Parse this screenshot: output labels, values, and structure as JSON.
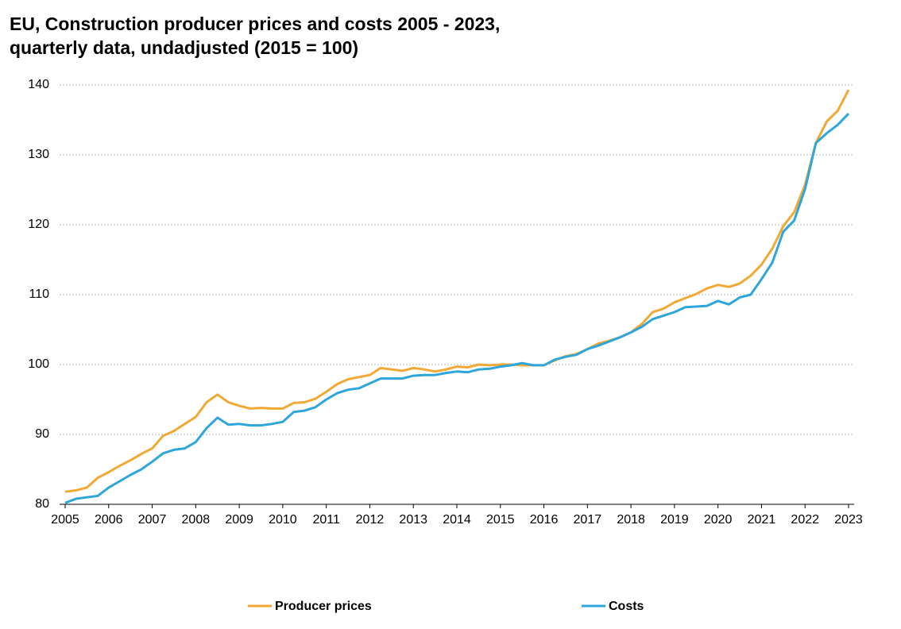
{
  "chart_data": {
    "type": "line",
    "title": [
      "EU, Construction producer prices and costs 2005 - 2023,",
      "quarterly data, undadjusted (2015 = 100)"
    ],
    "categories": [
      "2005",
      null,
      null,
      null,
      "2006",
      null,
      null,
      null,
      "2007",
      null,
      null,
      null,
      "2008",
      null,
      null,
      null,
      "2009",
      null,
      null,
      null,
      "2010",
      null,
      null,
      null,
      "2011",
      null,
      null,
      null,
      "2012",
      null,
      null,
      null,
      "2013",
      null,
      null,
      null,
      "2014",
      null,
      null,
      null,
      "2015",
      null,
      null,
      null,
      "2016",
      null,
      null,
      null,
      "2017",
      null,
      null,
      null,
      "2018",
      null,
      null,
      null,
      "2019",
      null,
      null,
      null,
      "2020",
      null,
      null,
      null,
      "2021",
      null,
      null,
      null,
      "2022",
      null,
      null,
      null,
      "2023"
    ],
    "series": [
      {
        "name": "Producer prices",
        "color": "#f0a934",
        "values": [
          81.8,
          82.0,
          82.4,
          83.8,
          84.6,
          85.5,
          86.3,
          87.2,
          88.0,
          89.8,
          90.5,
          91.5,
          92.5,
          94.6,
          95.7,
          94.6,
          94.1,
          93.7,
          93.8,
          93.7,
          93.7,
          94.5,
          94.6,
          95.1,
          96.1,
          97.2,
          97.9,
          98.2,
          98.5,
          99.5,
          99.3,
          99.1,
          99.5,
          99.3,
          99.0,
          99.3,
          99.7,
          99.6,
          100.0,
          99.9,
          100.0,
          100.0,
          99.9,
          99.9,
          99.9,
          100.6,
          101.2,
          101.5,
          102.2,
          103.0,
          103.4,
          103.9,
          104.6,
          105.8,
          107.5,
          108.0,
          108.9,
          109.5,
          110.1,
          110.9,
          111.4,
          111.1,
          111.6,
          112.7,
          114.3,
          116.6,
          119.8,
          121.8,
          125.7,
          131.7,
          134.8,
          136.3,
          139.3
        ]
      },
      {
        "name": "Costs",
        "color": "#2ea6da",
        "values": [
          80.2,
          80.8,
          81.0,
          81.2,
          82.4,
          83.3,
          84.2,
          85.0,
          86.1,
          87.3,
          87.8,
          88.0,
          88.9,
          90.9,
          92.4,
          91.4,
          91.5,
          91.3,
          91.3,
          91.5,
          91.8,
          93.2,
          93.4,
          93.9,
          95.0,
          95.9,
          96.4,
          96.6,
          97.3,
          98.0,
          98.0,
          98.0,
          98.4,
          98.5,
          98.5,
          98.8,
          99.0,
          98.9,
          99.3,
          99.4,
          99.7,
          99.9,
          100.2,
          99.9,
          99.9,
          100.7,
          101.1,
          101.4,
          102.2,
          102.7,
          103.3,
          103.9,
          104.6,
          105.4,
          106.5,
          107.0,
          107.5,
          108.2,
          108.3,
          108.4,
          109.1,
          108.6,
          109.6,
          110.0,
          112.2,
          114.6,
          119.0,
          120.6,
          125.1,
          131.7,
          133.1,
          134.3,
          135.9
        ]
      }
    ],
    "ylim": [
      80,
      140
    ],
    "yticks": [
      80,
      90,
      100,
      110,
      120,
      130,
      140
    ],
    "grid": true,
    "legend": "bottom"
  }
}
